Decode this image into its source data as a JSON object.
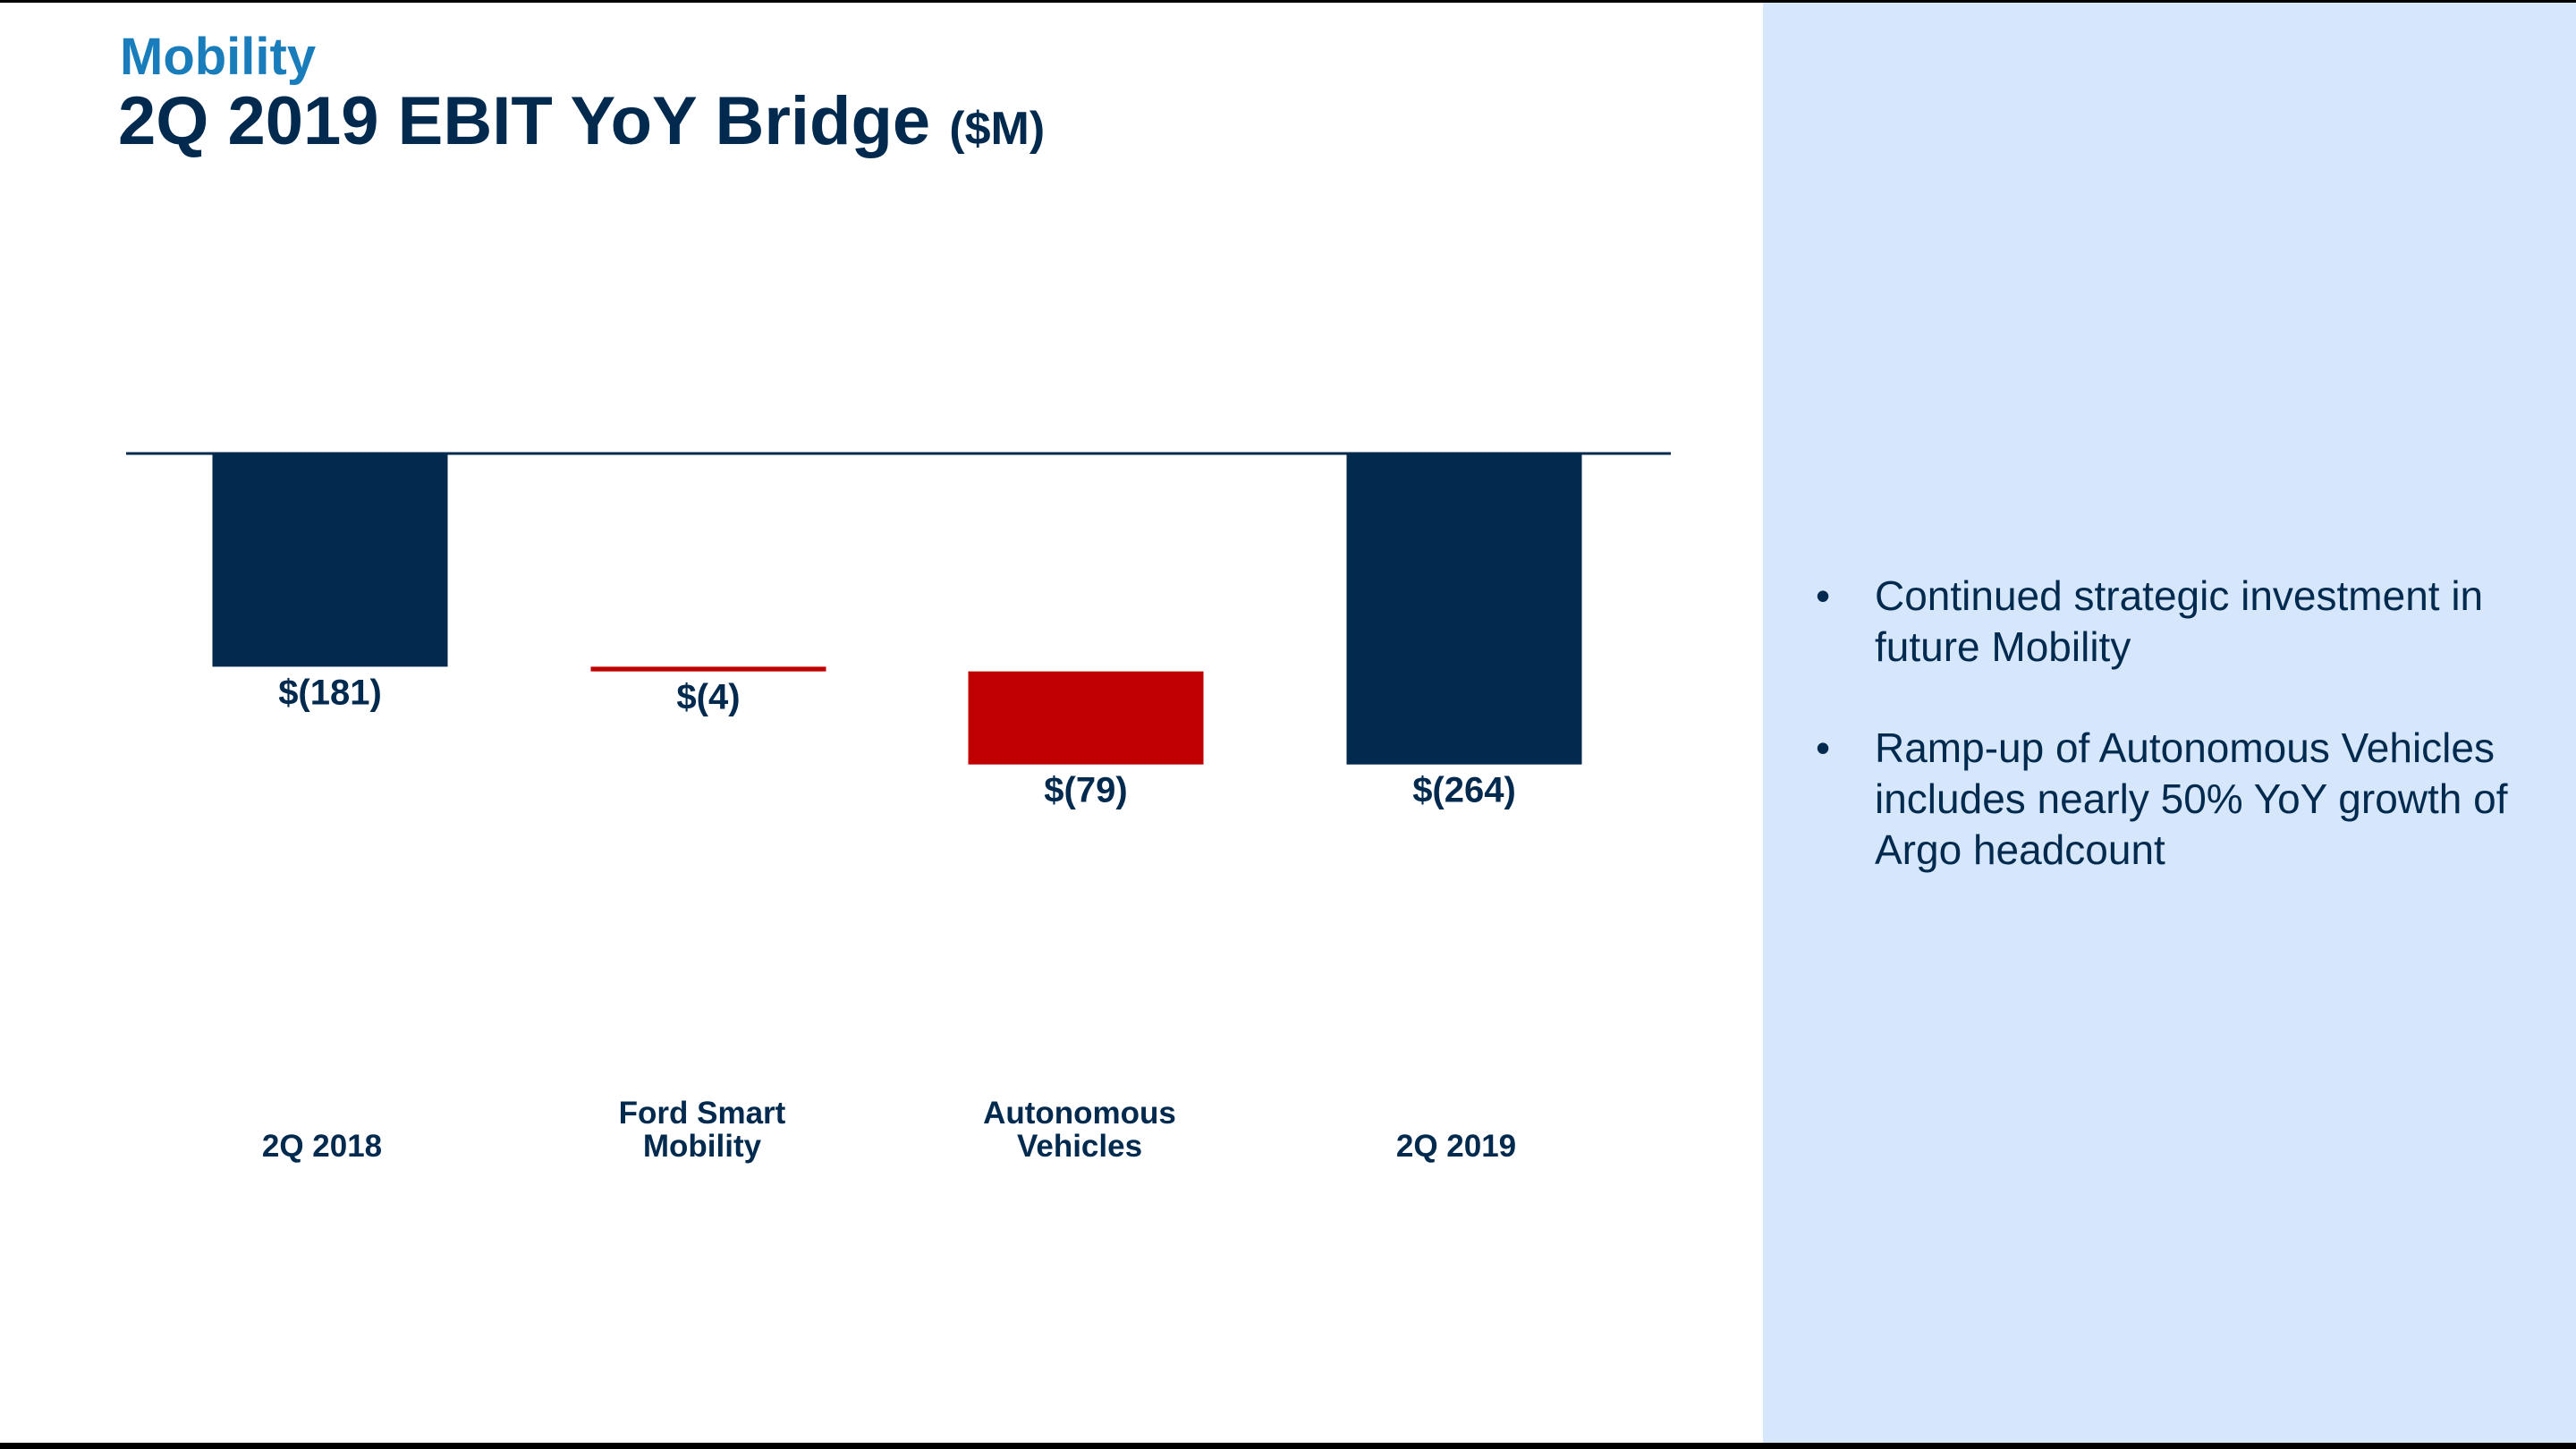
{
  "chart_data": {
    "type": "waterfall",
    "subtitle": "Mobility",
    "title": "2Q 2019 EBIT YoY Bridge",
    "unit": "($M)",
    "categories": [
      "2Q 2018",
      "Ford Smart Mobility",
      "Autonomous Vehicles",
      "2Q 2019"
    ],
    "values": [
      -181,
      -4,
      -79,
      -264
    ],
    "value_labels": [
      "$(181)",
      "$(4)",
      "$(79)",
      "$(264)"
    ],
    "colors": [
      "#012a4e",
      "#c00000",
      "#c00000",
      "#012a4e"
    ]
  },
  "notes": [
    "Continued strategic investment in future Mobility",
    "Ramp-up of Autonomous Vehicles includes nearly 50% YoY growth of Argo headcount"
  ]
}
